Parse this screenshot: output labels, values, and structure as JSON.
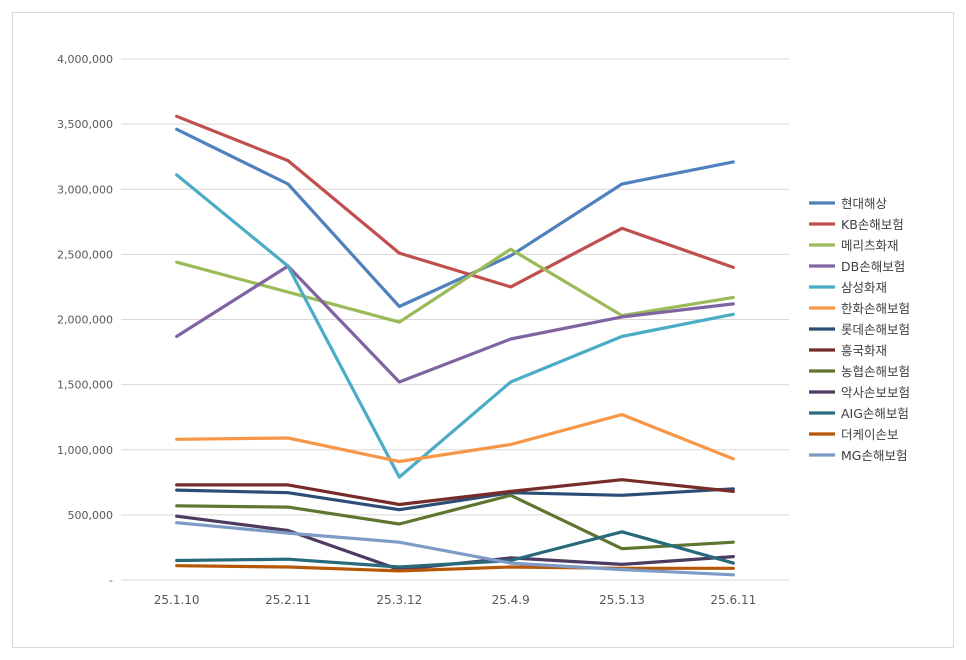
{
  "chart_data": {
    "type": "line",
    "title": "",
    "xlabel": "",
    "ylabel": "",
    "categories": [
      "25.1.10",
      "25.2.11",
      "25.3.12",
      "25.4.9",
      "25.5.13",
      "25.6.11"
    ],
    "ylim": [
      0,
      4000000
    ],
    "yticks": [
      0,
      500000,
      1000000,
      1500000,
      2000000,
      2500000,
      3000000,
      3500000,
      4000000
    ],
    "ytick_labels": [
      "-",
      "500,000",
      "1,000,000",
      "1,500,000",
      "2,000,000",
      "2,500,000",
      "3,000,000",
      "3,500,000",
      "4,000,000"
    ],
    "grid": true,
    "legend_position": "right",
    "series": [
      {
        "name": "현대해상",
        "color": "#4f81bd",
        "values": [
          3460000,
          3040000,
          2100000,
          2490000,
          3040000,
          3210000
        ]
      },
      {
        "name": "KB손해보험",
        "color": "#c0504d",
        "values": [
          3560000,
          3220000,
          2510000,
          2250000,
          2700000,
          2400000
        ]
      },
      {
        "name": "메리츠화재",
        "color": "#9bbb59",
        "values": [
          2440000,
          2210000,
          1980000,
          2540000,
          2030000,
          2170000
        ]
      },
      {
        "name": "DB손해보험",
        "color": "#8064a2",
        "values": [
          1870000,
          2410000,
          1520000,
          1850000,
          2020000,
          2120000
        ]
      },
      {
        "name": "삼성화재",
        "color": "#4bacc6",
        "values": [
          3110000,
          2410000,
          790000,
          1520000,
          1870000,
          2040000
        ]
      },
      {
        "name": "한화손해보험",
        "color": "#f79646",
        "values": [
          1080000,
          1090000,
          910000,
          1040000,
          1270000,
          930000
        ]
      },
      {
        "name": "롯데손해보험",
        "color": "#2c4d75",
        "values": [
          690000,
          670000,
          540000,
          670000,
          650000,
          700000
        ]
      },
      {
        "name": "흥국화재",
        "color": "#772c2a",
        "values": [
          730000,
          730000,
          580000,
          680000,
          770000,
          680000
        ]
      },
      {
        "name": "농협손해보험",
        "color": "#5f7530",
        "values": [
          570000,
          560000,
          430000,
          650000,
          240000,
          290000
        ]
      },
      {
        "name": "악사손보보험",
        "color": "#4d3b62",
        "values": [
          490000,
          380000,
          80000,
          170000,
          120000,
          180000
        ]
      },
      {
        "name": "AIG손해보험",
        "color": "#276a7c",
        "values": [
          150000,
          160000,
          100000,
          150000,
          370000,
          130000
        ]
      },
      {
        "name": "더케이손보",
        "color": "#b65708",
        "values": [
          110000,
          100000,
          70000,
          100000,
          90000,
          90000
        ]
      },
      {
        "name": "MG손해보험",
        "color": "#7e9bc8",
        "values": [
          440000,
          360000,
          290000,
          130000,
          80000,
          40000
        ]
      }
    ]
  }
}
